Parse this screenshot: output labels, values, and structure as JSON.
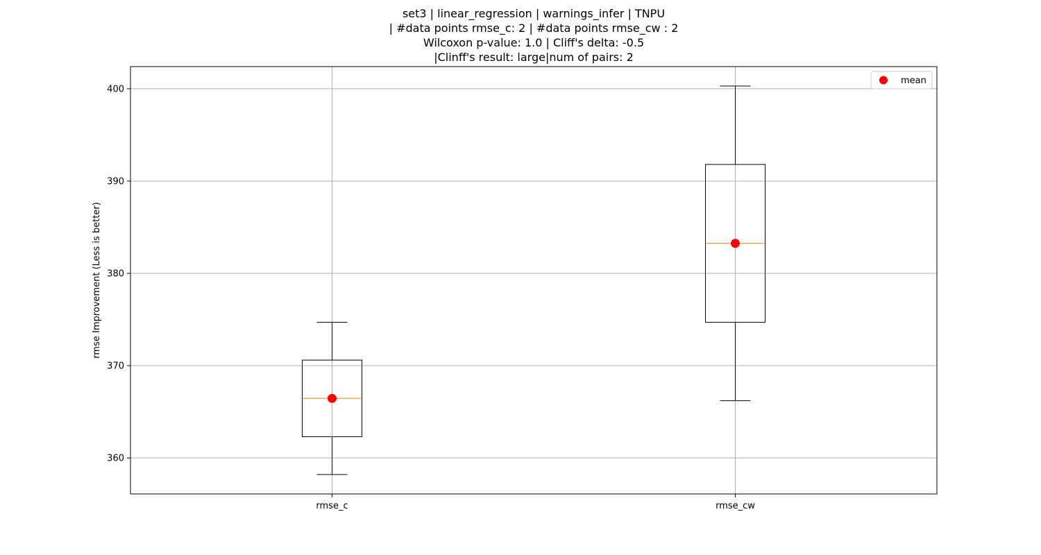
{
  "chart_data": {
    "type": "boxplot",
    "title_lines": [
      "set3 | linear_regression | warnings_infer | TNPU",
      "| #data points rmse_c: 2 | #data points rmse_cw : 2",
      "Wilcoxon p-value: 1.0 | Cliff's delta: -0.5",
      "|Clinff's result: large|num of pairs: 2"
    ],
    "xlabel": "",
    "ylabel": "rmse Improvement (Less is better)",
    "ylim": [
      356.1,
      402.4
    ],
    "yticks": [
      360,
      370,
      380,
      390,
      400
    ],
    "grid": true,
    "legend": {
      "position": "top-right",
      "entries": [
        "mean"
      ]
    },
    "categories": [
      "rmse_c",
      "rmse_cw"
    ],
    "boxes": [
      {
        "name": "rmse_c",
        "whisker_low": 358.2,
        "q1": 362.3,
        "median": 366.45,
        "q3": 370.6,
        "whisker_high": 374.7,
        "mean": 366.45
      },
      {
        "name": "rmse_cw",
        "whisker_low": 366.2,
        "q1": 374.7,
        "median": 383.25,
        "q3": 391.8,
        "whisker_high": 400.3,
        "mean": 383.25
      }
    ],
    "colors": {
      "box": "#000000",
      "median": "#ff7f0e",
      "mean": "#ff0000",
      "grid": "#b0b0b0"
    }
  }
}
